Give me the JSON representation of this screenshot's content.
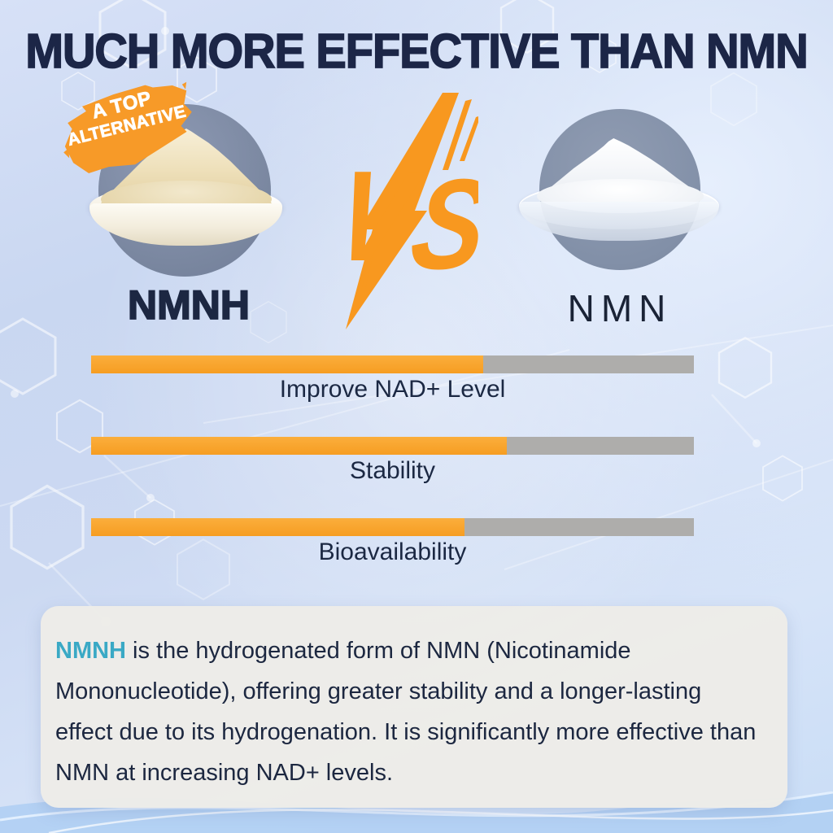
{
  "title": "MUCH MORE EFFECTIVE THAN NMN",
  "badge": {
    "line1": "A TOP",
    "line2": "ALTERNATIVE"
  },
  "comparison": {
    "left": {
      "name": "NMNH",
      "image": "beige NMNH powder heaped in a white ceramic dish"
    },
    "versus": "VS",
    "right": {
      "name": "NMN",
      "image": "white NMN powder heaped in a glass dish"
    }
  },
  "chart_data": {
    "type": "bar",
    "title": "",
    "categories": [
      "Improve NAD+ Level",
      "Stability",
      "Bioavailability"
    ],
    "series": [
      {
        "name": "NMNH",
        "color": "#F8A42F",
        "values": [
          65,
          69,
          62
        ]
      },
      {
        "name": "NMN",
        "color": "#AEADAB",
        "values": [
          35,
          31,
          38
        ]
      }
    ],
    "unit": "percent of bar length (orange = NMNH share, gray = NMN remainder; no numeric labels shown)",
    "legend_position": "none",
    "grid": false,
    "orientation": "horizontal"
  },
  "description": {
    "highlight": "NMNH",
    "body": " is the hydrogenated form of NMN (Nicotinamide Mononucleotide), offering greater stability and a longer-lasting effect due to its hydrogenation. It is significantly more effective than NMN at increasing NAD+ levels."
  },
  "colors": {
    "title_navy": "#1C2647",
    "accent_orange": "#F79A28",
    "vs_orange": "#F8981F",
    "bar_orange": "#F8A42F",
    "bar_gray": "#AEADAB",
    "teal_highlight": "#3AA9C5",
    "card_background": "#EDECE8",
    "circle_slate": "#7E8AA6",
    "background_blue": "#CCD9F2"
  }
}
